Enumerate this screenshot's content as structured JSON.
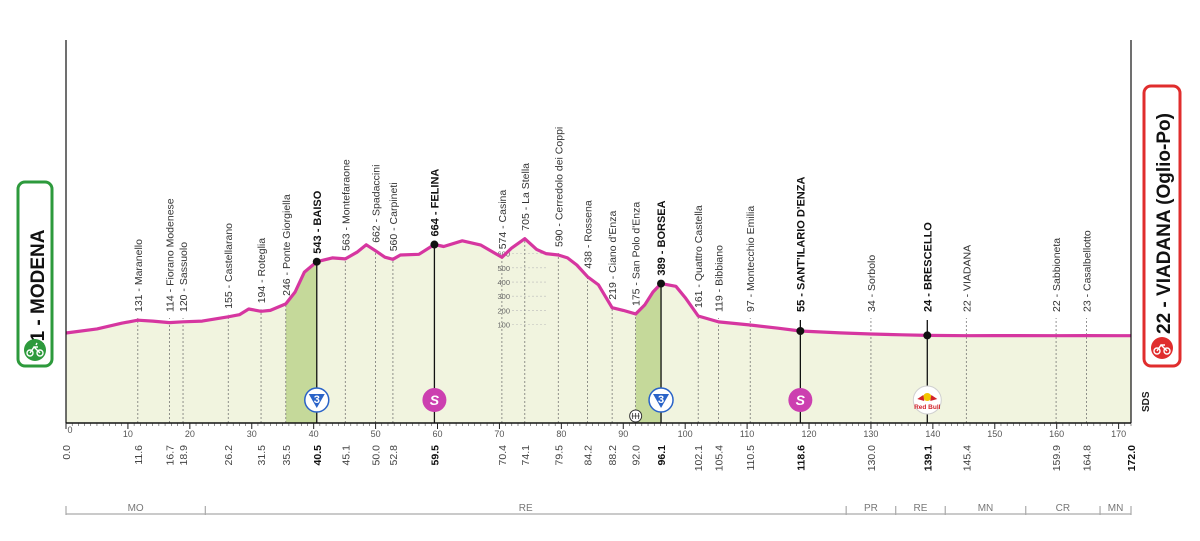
{
  "colors": {
    "profile": "#d636a0",
    "fill": "#f1f4df",
    "climb_fill": "#c5d99a",
    "start_box": "#2d9a3c",
    "finish_box": "#e02d2d",
    "cat3_badge": "#2a63c8",
    "sprint_badge": "#cc3fb0",
    "axis": "#111111"
  },
  "start": {
    "label": "41 - MODENA",
    "icon": "cyclist-icon"
  },
  "finish": {
    "label": "22 - VIADANA (Oglio-Po)",
    "icon": "finish-flag-icon"
  },
  "sds_label": "SDS",
  "chart_data": {
    "type": "area",
    "title": "",
    "xlabel": "km",
    "ylabel": "m",
    "xlim": [
      0,
      172
    ],
    "ylim": [
      0,
      800
    ],
    "x_ticks": [
      0,
      10,
      20,
      30,
      40,
      50,
      60,
      70,
      80,
      90,
      100,
      110,
      120,
      130,
      140,
      150,
      160,
      170
    ],
    "x_tick_labels": [
      "0",
      "10",
      "20",
      "30",
      "40",
      "50",
      "60",
      "70",
      "80",
      "90",
      "100",
      "110",
      "120",
      "130",
      "140",
      "150",
      "160",
      "170"
    ],
    "y_ticks": [
      100,
      200,
      300,
      400,
      500,
      600
    ],
    "y_tick_labels": [
      "100",
      "200",
      "300",
      "400",
      "500",
      "600"
    ],
    "y_tick_km": 73,
    "profile": {
      "x": [
        0,
        5,
        9,
        11.6,
        14,
        16.7,
        18.9,
        22,
        26.2,
        28,
        29.5,
        31.5,
        33,
        35.5,
        37,
        38.5,
        40.5,
        43,
        45.1,
        47,
        48.5,
        50,
        51.5,
        52.8,
        54,
        57,
        59.5,
        61,
        64,
        67,
        70.4,
        72,
        74.1,
        76,
        77.5,
        79.5,
        81,
        82.5,
        84.2,
        86,
        88.2,
        90,
        92,
        93.5,
        94.8,
        96.1,
        98.5,
        100,
        102.1,
        105.4,
        110.5,
        115,
        118.6,
        125,
        130,
        135,
        139.1,
        145.4,
        150,
        159.9,
        164.8,
        170,
        172
      ],
      "y": [
        41,
        70,
        110,
        131,
        125,
        114,
        120,
        125,
        155,
        170,
        210,
        194,
        200,
        246,
        330,
        470,
        543,
        570,
        563,
        610,
        662,
        620,
        575,
        560,
        590,
        595,
        664,
        650,
        690,
        660,
        574,
        640,
        705,
        630,
        600,
        590,
        570,
        520,
        438,
        380,
        219,
        200,
        175,
        240,
        330,
        389,
        370,
        290,
        161,
        119,
        97,
        75,
        55,
        42,
        34,
        28,
        24,
        22,
        23,
        22,
        23,
        22,
        22
      ]
    },
    "climb_zones": [
      {
        "from": 35.5,
        "to": 40.5
      },
      {
        "from": 92.0,
        "to": 96.1
      }
    ],
    "waypoints": [
      {
        "km": 11.6,
        "km_label": "11.6",
        "name": "131 - Maranello",
        "bold": false
      },
      {
        "km": 16.7,
        "km_label": "16.7",
        "name": "114 - Fiorano Modenese",
        "bold": false
      },
      {
        "km": 18.9,
        "km_label": "18.9",
        "name": "120 - Sassuolo",
        "bold": false
      },
      {
        "km": 26.2,
        "km_label": "26.2",
        "name": "155 - Castellarano",
        "bold": false
      },
      {
        "km": 31.5,
        "km_label": "31.5",
        "name": "194 - Roteglia",
        "bold": false
      },
      {
        "km": 35.5,
        "km_label": "35.5",
        "name": "246 - Ponte Giorgiella",
        "bold": false
      },
      {
        "km": 40.5,
        "km_label": "40.5",
        "name": "543 - BAISO",
        "bold": true
      },
      {
        "km": 45.1,
        "km_label": "45.1",
        "name": "563 - Montefaraone",
        "bold": false
      },
      {
        "km": 50.0,
        "km_label": "50.0",
        "name": "662 - Spadaccini",
        "bold": false
      },
      {
        "km": 52.8,
        "km_label": "52.8",
        "name": "560 - Carpineti",
        "bold": false
      },
      {
        "km": 59.5,
        "km_label": "59.5",
        "name": "664 - FELINA",
        "bold": true
      },
      {
        "km": 70.4,
        "km_label": "70.4",
        "name": "574 - Casina",
        "bold": false
      },
      {
        "km": 74.1,
        "km_label": "74.1",
        "name": "705 - La Stella",
        "bold": false
      },
      {
        "km": 79.5,
        "km_label": "79.5",
        "name": "590 - Cerredolo dei Coppi",
        "bold": false
      },
      {
        "km": 84.2,
        "km_label": "84.2",
        "name": "438 - Rossena",
        "bold": false
      },
      {
        "km": 88.2,
        "km_label": "88.2",
        "name": "219 - Ciano d'Enza",
        "bold": false
      },
      {
        "km": 92.0,
        "km_label": "92.0",
        "name": "175 - San Polo d'Enza",
        "bold": false
      },
      {
        "km": 96.1,
        "km_label": "96.1",
        "name": "389 - BORSEA",
        "bold": true
      },
      {
        "km": 102.1,
        "km_label": "102.1",
        "name": "161 - Quattro Castella",
        "bold": false
      },
      {
        "km": 105.4,
        "km_label": "105.4",
        "name": "119 - Bibbiano",
        "bold": false
      },
      {
        "km": 110.5,
        "km_label": "110.5",
        "name": "97 - Montecchio Emilia",
        "bold": false
      },
      {
        "km": 118.6,
        "km_label": "118.6",
        "name": "55 - SANT'ILARIO D'ENZA",
        "bold": true
      },
      {
        "km": 130.0,
        "km_label": "130.0",
        "name": "34 - Sorbolo",
        "bold": false
      },
      {
        "km": 139.1,
        "km_label": "139.1",
        "name": "24 - BRESCELLO",
        "bold": true
      },
      {
        "km": 145.4,
        "km_label": "145.4",
        "name": "22 - VIADANA",
        "bold": false
      },
      {
        "km": 159.9,
        "km_label": "159.9",
        "name": "22 - Sabbioneta",
        "bold": false
      },
      {
        "km": 164.8,
        "km_label": "164.8",
        "name": "23 - Casalbellotto",
        "bold": false
      }
    ],
    "start_km_label": "0.0",
    "end_km_label": "172.0",
    "badges": [
      {
        "km": 40.5,
        "type": "cat3",
        "text": "3"
      },
      {
        "km": 59.5,
        "type": "sprint",
        "text": "S"
      },
      {
        "km": 96.1,
        "type": "cat3",
        "text": "3"
      },
      {
        "km": 118.6,
        "type": "sprint",
        "text": "S"
      },
      {
        "km": 139.1,
        "type": "redbull",
        "text": "Red Bull"
      }
    ],
    "feed_zone_km": 92.0,
    "regions": [
      {
        "label": "MO",
        "from": 0,
        "to": 22.5
      },
      {
        "label": "RE",
        "from": 22.5,
        "to": 126
      },
      {
        "label": "PR",
        "from": 126,
        "to": 134
      },
      {
        "label": "RE",
        "from": 134,
        "to": 142
      },
      {
        "label": "MN",
        "from": 142,
        "to": 155
      },
      {
        "label": "CR",
        "from": 155,
        "to": 167
      },
      {
        "label": "MN",
        "from": 167,
        "to": 172
      }
    ]
  }
}
